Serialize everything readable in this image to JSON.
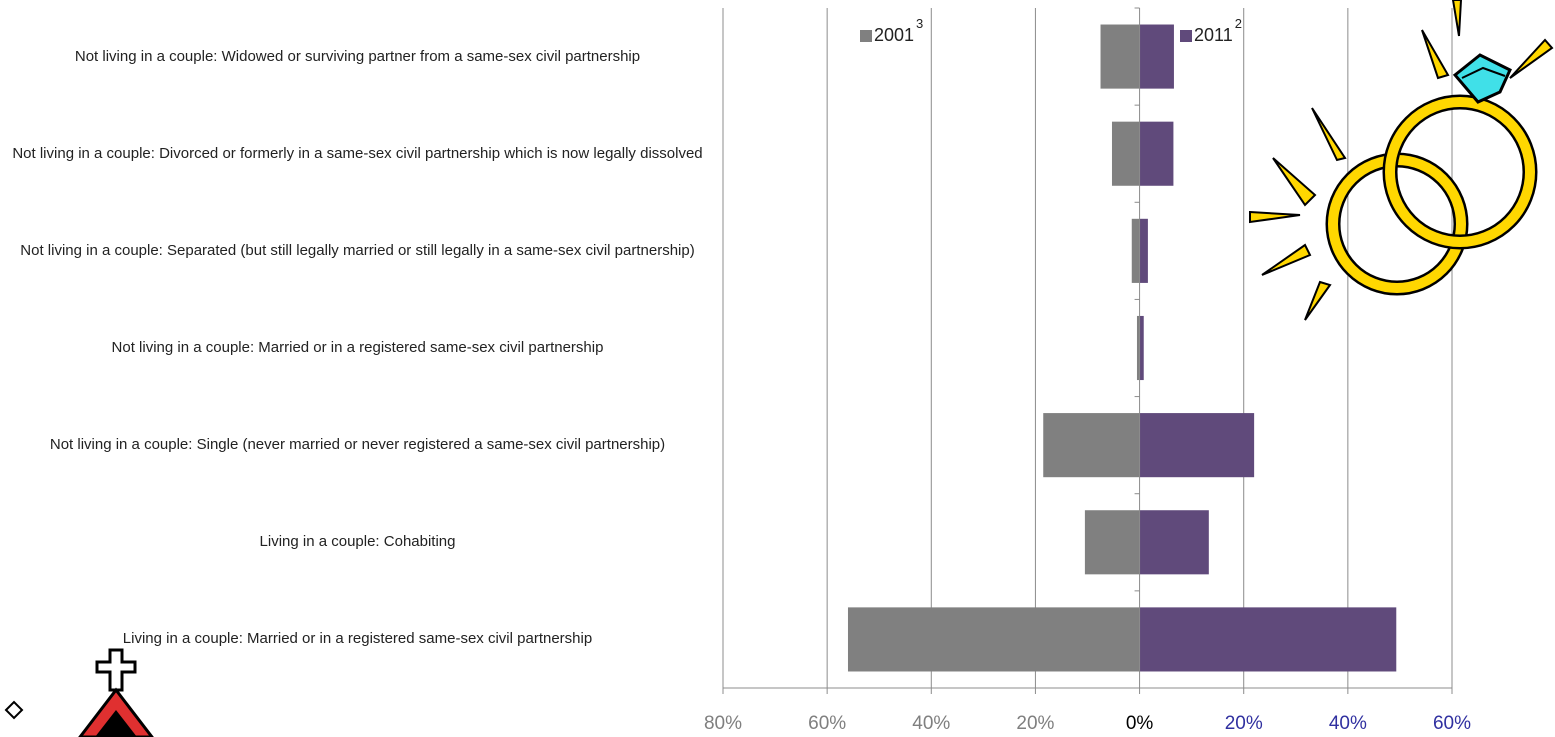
{
  "chart_data": {
    "type": "bar",
    "orientation": "horizontal",
    "layout": "butterfly",
    "categories": [
      "Not living in a couple: Widowed or surviving partner from a same-sex civil partnership",
      "Not living in a couple: Divorced or formerly in a same-sex civil partnership which is now legally dissolved",
      "Not living in a couple: Separated (but still legally married or still legally in a same-sex civil partnership)",
      "Not living in a couple: Married or in a registered same-sex civil partnership",
      "Not living in a couple: Single (never married or never registered a same-sex civil partnership)",
      "Living in a couple: Cohabiting",
      "Living in a couple: Married or in a registered same-sex civil partnership"
    ],
    "series": [
      {
        "name": "2001",
        "footnote": "3",
        "side": "left",
        "color": "#808080",
        "values": [
          7.5,
          5.3,
          1.5,
          0.5,
          18.5,
          10.5,
          56.0
        ]
      },
      {
        "name": "2011",
        "footnote": "2",
        "side": "right",
        "color": "#604a7b",
        "values": [
          6.6,
          6.5,
          1.6,
          0.8,
          22.0,
          13.3,
          49.3
        ]
      }
    ],
    "xlim": [
      -80,
      60
    ],
    "tick_values": [
      -80,
      -60,
      -40,
      -20,
      0,
      20,
      40,
      60
    ],
    "tick_labels": [
      "80%",
      "60%",
      "40%",
      "20%",
      "0%",
      "20%",
      "40%",
      "60%"
    ],
    "tick_label_colors": [
      "#7f7f7f",
      "#7f7f7f",
      "#7f7f7f",
      "#7f7f7f",
      "#000000",
      "#3030a0",
      "#3030a0",
      "#3030a0"
    ],
    "grid": true,
    "legend_position": "top-center"
  }
}
